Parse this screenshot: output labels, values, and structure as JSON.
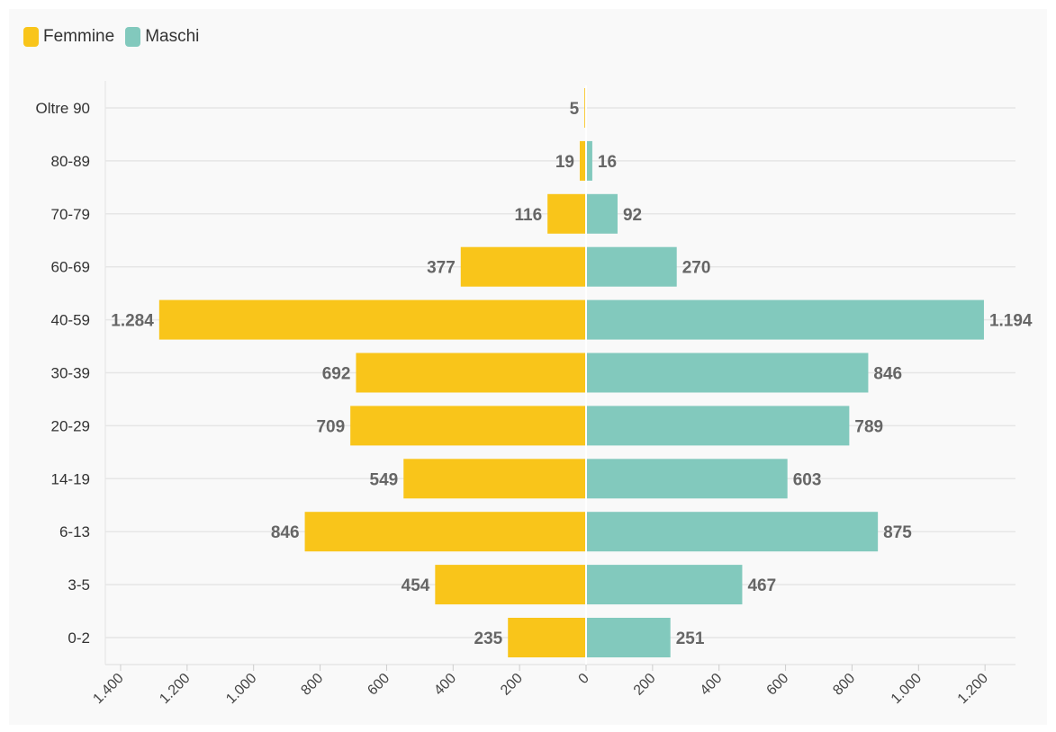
{
  "chart_data": {
    "type": "bar",
    "orientation": "horizontal",
    "layout": "population-pyramid",
    "categories": [
      "Oltre 90",
      "80-89",
      "70-79",
      "60-69",
      "40-59",
      "30-39",
      "20-29",
      "14-19",
      "6-13",
      "3-5",
      "0-2"
    ],
    "series": [
      {
        "name": "Femmine",
        "color": "#f9c51a",
        "side": "left",
        "values": [
          5,
          19,
          116,
          377,
          1284,
          692,
          709,
          549,
          846,
          454,
          235
        ],
        "labels": [
          "5",
          "19",
          "116",
          "377",
          "1.284",
          "692",
          "709",
          "549",
          "846",
          "454",
          "235"
        ]
      },
      {
        "name": "Maschi",
        "color": "#82c9bd",
        "side": "right",
        "values": [
          null,
          16,
          92,
          270,
          1194,
          846,
          789,
          603,
          875,
          467,
          251
        ],
        "labels": [
          "",
          "16",
          "92",
          "270",
          "1.194",
          "846",
          "789",
          "603",
          "875",
          "467",
          "251"
        ]
      }
    ],
    "x_ticks": {
      "left": [
        "1.400",
        "1.200",
        "1.000",
        "800",
        "600",
        "400",
        "200"
      ],
      "center": "0",
      "right": [
        "200",
        "400",
        "600",
        "800",
        "1.000",
        "1.200"
      ]
    },
    "xlim": [
      -1400,
      1300
    ],
    "legend_position": "top-left",
    "grid": true
  }
}
